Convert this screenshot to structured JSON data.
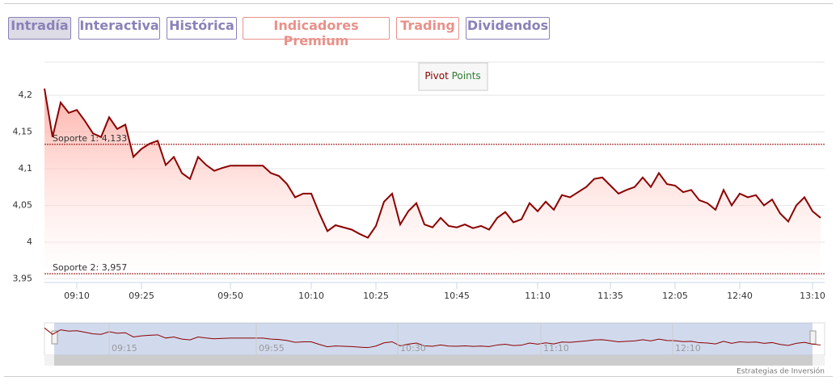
{
  "tabs": [
    "Intradía",
    "Interactiva",
    "Histórica",
    "Indicadores Premium",
    "Trading",
    "Dividendos"
  ],
  "chart_data": {
    "type": "line",
    "legend_button": [
      "Pivot",
      "Points"
    ],
    "categories": [
      null,
      null,
      null,
      null,
      "09:10",
      null,
      null,
      null,
      null,
      null,
      null,
      null,
      "09:25",
      null,
      null,
      null,
      null,
      null,
      null,
      null,
      null,
      null,
      null,
      "09:50",
      null,
      null,
      null,
      null,
      null,
      null,
      null,
      null,
      null,
      "10:10",
      null,
      null,
      null,
      null,
      null,
      null,
      null,
      "10:25",
      null,
      null,
      null,
      null,
      null,
      null,
      null,
      null,
      null,
      "10:45",
      null,
      null,
      null,
      null,
      null,
      null,
      null,
      null,
      null,
      "11:10",
      null,
      null,
      null,
      null,
      null,
      null,
      null,
      null,
      "11:35",
      null,
      null,
      null,
      null,
      null,
      null,
      null,
      "12:05",
      null,
      null,
      null,
      null,
      null,
      null,
      null,
      "12:40",
      null,
      null,
      null,
      null,
      null,
      null,
      null,
      null,
      "13:10",
      null
    ],
    "series": [
      {
        "color": "#8b0000",
        "values": [
          4.209,
          4.143,
          4.19,
          4.176,
          4.18,
          4.165,
          4.148,
          4.143,
          4.17,
          4.154,
          4.16,
          4.116,
          4.127,
          4.134,
          4.138,
          4.105,
          4.116,
          4.094,
          4.086,
          4.116,
          4.105,
          4.097,
          4.101,
          4.104,
          4.104,
          4.104,
          4.104,
          4.104,
          4.094,
          4.09,
          4.079,
          4.061,
          4.066,
          4.066,
          4.039,
          4.015,
          4.023,
          4.02,
          4.017,
          4.011,
          4.006,
          4.022,
          4.055,
          4.066,
          4.024,
          4.042,
          4.053,
          4.024,
          4.02,
          4.033,
          4.022,
          4.02,
          4.024,
          4.019,
          4.022,
          4.017,
          4.033,
          4.041,
          4.027,
          4.031,
          4.053,
          4.042,
          4.055,
          4.044,
          4.064,
          4.061,
          4.068,
          4.075,
          4.086,
          4.088,
          4.077,
          4.066,
          4.071,
          4.075,
          4.088,
          4.075,
          4.094,
          4.079,
          4.077,
          4.068,
          4.071,
          4.057,
          4.053,
          4.044,
          4.071,
          4.05,
          4.066,
          4.061,
          4.064,
          4.05,
          4.058,
          4.039,
          4.028,
          4.05,
          4.061,
          4.042,
          4.033
        ]
      }
    ],
    "ylim": [
      3.945,
      4.245
    ],
    "yticks": [
      {
        "value": 3.95,
        "label": "3,95"
      },
      4,
      {
        "value": 4.05,
        "label": "4,05"
      },
      {
        "value": 4.1,
        "label": "4,1"
      },
      {
        "value": 4.15,
        "label": "4,15"
      },
      {
        "value": 4.2,
        "label": "4,2"
      }
    ],
    "grid": true,
    "annotations": [
      {
        "label": "Soporte 1: 4,133",
        "value": 4.133
      },
      {
        "label": "Soporte 2: 3,957",
        "value": 3.957
      }
    ],
    "navigator_labels": [
      "09:15",
      "09:55",
      "10:30",
      "11:10",
      "12:10"
    ]
  },
  "credit": "Estrategias de Inversión"
}
